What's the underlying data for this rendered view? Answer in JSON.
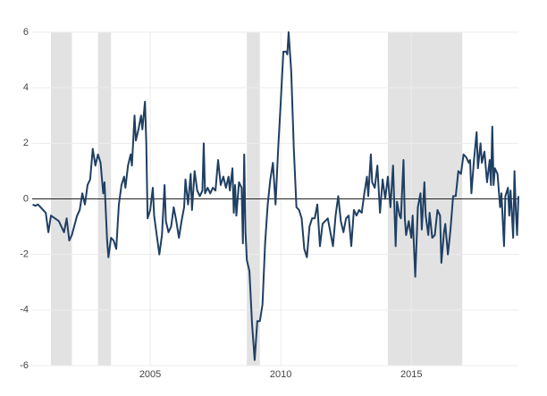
{
  "chart_data": {
    "type": "line",
    "x": [
      2000.5,
      2000.6,
      2000.7,
      2000.8,
      2000.9,
      2001.0,
      2001.1,
      2001.2,
      2001.5,
      2001.7,
      2001.8,
      2001.9,
      2002.0,
      2002.2,
      2002.3,
      2002.4,
      2002.5,
      2002.6,
      2002.7,
      2002.8,
      2002.9,
      2003.0,
      2003.1,
      2003.2,
      2003.25,
      2003.35,
      2003.4,
      2003.5,
      2003.6,
      2003.7,
      2003.8,
      2003.9,
      2004.0,
      2004.05,
      2004.15,
      2004.25,
      2004.3,
      2004.4,
      2004.45,
      2004.55,
      2004.65,
      2004.7,
      2004.8,
      2004.85,
      2004.9,
      2005.0,
      2005.1,
      2005.15,
      2005.25,
      2005.35,
      2005.45,
      2005.55,
      2005.6,
      2005.7,
      2005.8,
      2005.9,
      2006.0,
      2006.1,
      2006.2,
      2006.3,
      2006.35,
      2006.45,
      2006.55,
      2006.6,
      2006.7,
      2006.8,
      2006.9,
      2007.0,
      2007.05,
      2007.1,
      2007.2,
      2007.3,
      2007.4,
      2007.5,
      2007.6,
      2007.7,
      2007.8,
      2007.9,
      2008.0,
      2008.05,
      2008.15,
      2008.2,
      2008.25,
      2008.3,
      2008.4,
      2008.5,
      2008.55,
      2008.6,
      2008.65,
      2008.7,
      2008.8,
      2008.9,
      2009.0,
      2009.1,
      2009.2,
      2009.3,
      2009.4,
      2009.5,
      2009.6,
      2009.7,
      2009.8,
      2009.9,
      2010.0,
      2010.1,
      2010.2,
      2010.25,
      2010.3,
      2010.4,
      2010.5,
      2010.6,
      2010.7,
      2010.8,
      2010.9,
      2011.0,
      2011.1,
      2011.2,
      2011.3,
      2011.4,
      2011.5,
      2011.6,
      2011.7,
      2011.8,
      2011.9,
      2012.0,
      2012.1,
      2012.2,
      2012.3,
      2012.4,
      2012.5,
      2012.6,
      2012.7,
      2012.8,
      2012.9,
      2013.0,
      2013.1,
      2013.2,
      2013.3,
      2013.35,
      2013.45,
      2013.5,
      2013.6,
      2013.7,
      2013.8,
      2013.9,
      2014.0,
      2014.1,
      2014.2,
      2014.3,
      2014.4,
      2014.45,
      2014.55,
      2014.6,
      2014.7,
      2014.75,
      2014.8,
      2014.9,
      2015.0,
      2015.05,
      2015.15,
      2015.25,
      2015.35,
      2015.4,
      2015.5,
      2015.55,
      2015.65,
      2015.7,
      2015.8,
      2015.9,
      2016.0,
      2016.1,
      2016.15,
      2016.25,
      2016.3,
      2016.4,
      2016.5,
      2016.6,
      2016.7,
      2016.8,
      2016.9,
      2017.0,
      2017.1,
      2017.2,
      2017.25,
      2017.3,
      2017.4,
      2017.5,
      2017.55,
      2017.65,
      2017.7,
      2017.8,
      2017.9,
      2018.0,
      2018.05,
      2018.1,
      2018.15,
      2018.2,
      2018.3,
      2018.4,
      2018.45,
      2018.55,
      2018.6,
      2018.7,
      2018.75,
      2018.8,
      2018.9,
      2018.95,
      2019.0,
      2019.05,
      2019.1
    ],
    "series": [
      {
        "color": "#1f3f63",
        "values": [
          -0.2,
          -0.25,
          -0.2,
          -0.3,
          -0.4,
          -0.5,
          -1.2,
          -0.6,
          -0.8,
          -1.2,
          -0.7,
          -1.5,
          -1.3,
          -0.6,
          -0.4,
          0.2,
          -0.2,
          0.5,
          0.7,
          1.8,
          1.2,
          1.6,
          1.3,
          0.2,
          0.6,
          -1.5,
          -2.1,
          -1.4,
          -1.5,
          -1.8,
          -0.2,
          0.5,
          0.8,
          0.4,
          1.2,
          1.6,
          1.2,
          3.0,
          2.1,
          2.5,
          3.0,
          2.5,
          3.5,
          2.0,
          -0.7,
          -0.4,
          0.4,
          -0.6,
          -1.3,
          -2.0,
          -1.3,
          0.5,
          -0.8,
          -1.2,
          -1.0,
          -0.3,
          -0.8,
          -1.4,
          -0.8,
          -0.3,
          0.7,
          -0.2,
          0.9,
          -0.4,
          1.0,
          0.3,
          0.1,
          0.3,
          2.0,
          0.2,
          0.4,
          0.2,
          0.4,
          0.3,
          1.4,
          0.5,
          0.8,
          0.4,
          0.8,
          0.3,
          1.1,
          -0.5,
          0.5,
          -0.6,
          0.6,
          0.4,
          -1.6,
          1.6,
          -1.2,
          -2.2,
          -2.6,
          -4.5,
          -5.8,
          -4.4,
          -4.4,
          -3.8,
          -1.6,
          -0.2,
          0.7,
          1.3,
          -0.2,
          1.8,
          3.5,
          5.3,
          5.3,
          5.2,
          6.0,
          4.6,
          1.8,
          -0.3,
          -0.4,
          -0.7,
          -1.8,
          -2.1,
          -1.0,
          -0.7,
          -0.7,
          -0.2,
          -1.7,
          -0.9,
          -0.8,
          -0.7,
          -1.2,
          -1.7,
          -0.6,
          0.1,
          -0.8,
          -1.2,
          -0.7,
          -0.6,
          -1.7,
          -0.4,
          -0.6,
          -0.4,
          -0.5,
          0.2,
          0.8,
          0.1,
          1.6,
          0.6,
          0.4,
          1.2,
          -0.5,
          0.7,
          0.0,
          0.8,
          -0.3,
          1.2,
          -1.7,
          -0.1,
          -0.6,
          -0.7,
          1.4,
          -0.7,
          -1.3,
          -0.8,
          -1.4,
          -0.6,
          -2.8,
          -0.3,
          0.2,
          -1.1,
          0.6,
          -0.6,
          -1.3,
          -0.5,
          -1.4,
          -1.3,
          -0.4,
          -0.6,
          -2.3,
          -1.2,
          -0.9,
          -2.0,
          -1.1,
          0.1,
          0.1,
          1.0,
          0.9,
          1.6,
          1.5,
          1.3,
          1.4,
          0.2,
          1.4,
          2.4,
          1.1,
          2.0,
          1.3,
          1.7,
          0.6,
          1.4,
          0.5,
          2.6,
          0.5,
          1.1,
          0.9,
          -0.3,
          0.2,
          -1.7,
          0.1,
          0.4,
          -0.6,
          0.3,
          -1.4,
          1.0,
          -0.4,
          -1.3,
          0.1
        ]
      }
    ],
    "shaded_regions": [
      [
        2001.2,
        2002.0
      ],
      [
        2003.0,
        2003.5
      ],
      [
        2008.7,
        2009.2
      ],
      [
        2014.1,
        2016.95
      ]
    ],
    "shade_color": "#e2e2e2",
    "xlim": [
      2000.48,
      2019.1
    ],
    "xticks": [
      2005,
      2010,
      2015
    ],
    "ylim": [
      -6,
      6
    ],
    "yticks": [
      -6,
      -4,
      -2,
      0,
      2,
      4,
      6
    ],
    "grid": true
  }
}
